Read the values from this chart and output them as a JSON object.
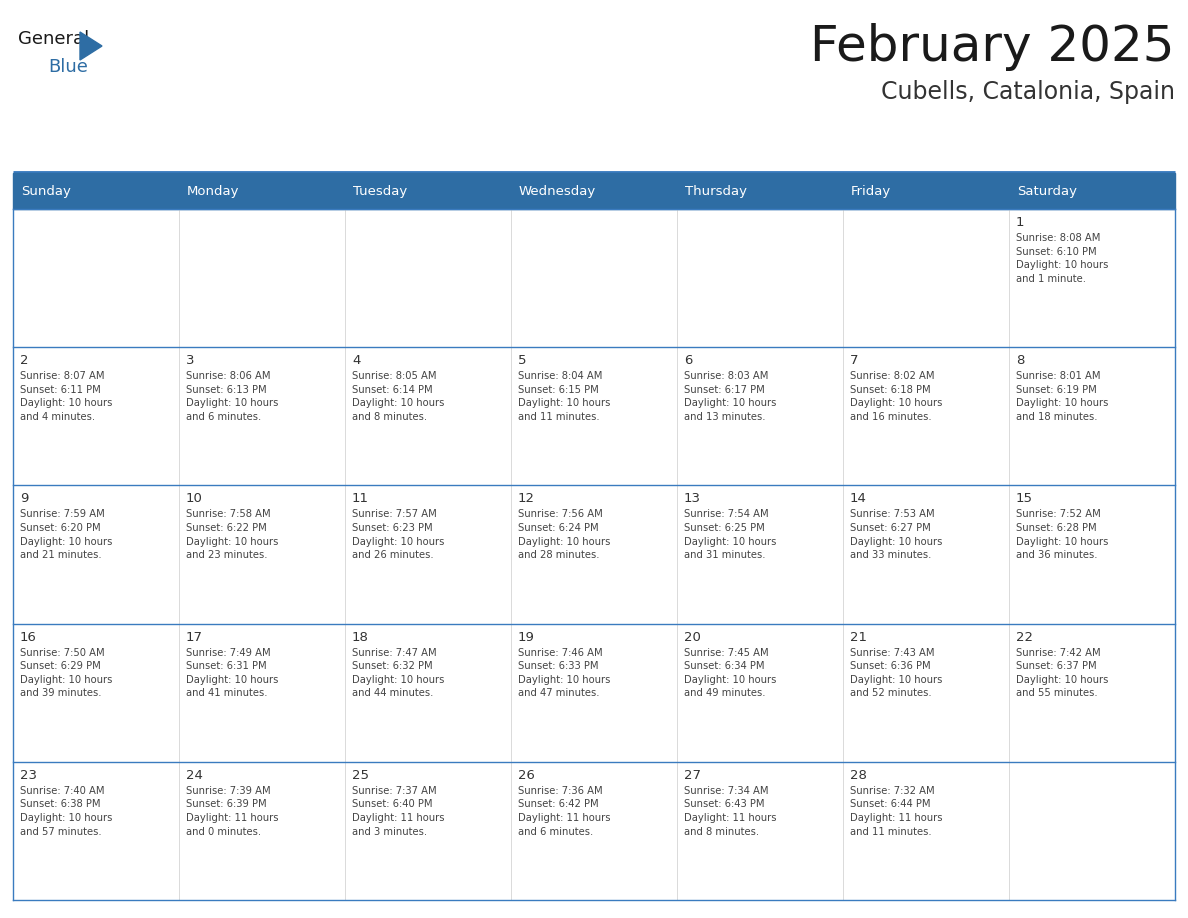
{
  "title": "February 2025",
  "subtitle": "Cubells, Catalonia, Spain",
  "header_bg": "#2e6da4",
  "header_text_color": "#ffffff",
  "title_color": "#1a1a1a",
  "subtitle_color": "#333333",
  "day_num_color": "#333333",
  "cell_text_color": "#444444",
  "grid_color": "#3a7bbf",
  "separator_color": "#3a7bbf",
  "cell_bg": "#ffffff",
  "first_row_bg": "#f2f2f2",
  "logo_general_color": "#1a1a1a",
  "logo_blue_color": "#2e6da4",
  "logo_triangle_color": "#2e6da4",
  "day_headers": [
    "Sunday",
    "Monday",
    "Tuesday",
    "Wednesday",
    "Thursday",
    "Friday",
    "Saturday"
  ],
  "weeks": [
    [
      {
        "day": null,
        "info": null
      },
      {
        "day": null,
        "info": null
      },
      {
        "day": null,
        "info": null
      },
      {
        "day": null,
        "info": null
      },
      {
        "day": null,
        "info": null
      },
      {
        "day": null,
        "info": null
      },
      {
        "day": 1,
        "info": "Sunrise: 8:08 AM\nSunset: 6:10 PM\nDaylight: 10 hours\nand 1 minute."
      }
    ],
    [
      {
        "day": 2,
        "info": "Sunrise: 8:07 AM\nSunset: 6:11 PM\nDaylight: 10 hours\nand 4 minutes."
      },
      {
        "day": 3,
        "info": "Sunrise: 8:06 AM\nSunset: 6:13 PM\nDaylight: 10 hours\nand 6 minutes."
      },
      {
        "day": 4,
        "info": "Sunrise: 8:05 AM\nSunset: 6:14 PM\nDaylight: 10 hours\nand 8 minutes."
      },
      {
        "day": 5,
        "info": "Sunrise: 8:04 AM\nSunset: 6:15 PM\nDaylight: 10 hours\nand 11 minutes."
      },
      {
        "day": 6,
        "info": "Sunrise: 8:03 AM\nSunset: 6:17 PM\nDaylight: 10 hours\nand 13 minutes."
      },
      {
        "day": 7,
        "info": "Sunrise: 8:02 AM\nSunset: 6:18 PM\nDaylight: 10 hours\nand 16 minutes."
      },
      {
        "day": 8,
        "info": "Sunrise: 8:01 AM\nSunset: 6:19 PM\nDaylight: 10 hours\nand 18 minutes."
      }
    ],
    [
      {
        "day": 9,
        "info": "Sunrise: 7:59 AM\nSunset: 6:20 PM\nDaylight: 10 hours\nand 21 minutes."
      },
      {
        "day": 10,
        "info": "Sunrise: 7:58 AM\nSunset: 6:22 PM\nDaylight: 10 hours\nand 23 minutes."
      },
      {
        "day": 11,
        "info": "Sunrise: 7:57 AM\nSunset: 6:23 PM\nDaylight: 10 hours\nand 26 minutes."
      },
      {
        "day": 12,
        "info": "Sunrise: 7:56 AM\nSunset: 6:24 PM\nDaylight: 10 hours\nand 28 minutes."
      },
      {
        "day": 13,
        "info": "Sunrise: 7:54 AM\nSunset: 6:25 PM\nDaylight: 10 hours\nand 31 minutes."
      },
      {
        "day": 14,
        "info": "Sunrise: 7:53 AM\nSunset: 6:27 PM\nDaylight: 10 hours\nand 33 minutes."
      },
      {
        "day": 15,
        "info": "Sunrise: 7:52 AM\nSunset: 6:28 PM\nDaylight: 10 hours\nand 36 minutes."
      }
    ],
    [
      {
        "day": 16,
        "info": "Sunrise: 7:50 AM\nSunset: 6:29 PM\nDaylight: 10 hours\nand 39 minutes."
      },
      {
        "day": 17,
        "info": "Sunrise: 7:49 AM\nSunset: 6:31 PM\nDaylight: 10 hours\nand 41 minutes."
      },
      {
        "day": 18,
        "info": "Sunrise: 7:47 AM\nSunset: 6:32 PM\nDaylight: 10 hours\nand 44 minutes."
      },
      {
        "day": 19,
        "info": "Sunrise: 7:46 AM\nSunset: 6:33 PM\nDaylight: 10 hours\nand 47 minutes."
      },
      {
        "day": 20,
        "info": "Sunrise: 7:45 AM\nSunset: 6:34 PM\nDaylight: 10 hours\nand 49 minutes."
      },
      {
        "day": 21,
        "info": "Sunrise: 7:43 AM\nSunset: 6:36 PM\nDaylight: 10 hours\nand 52 minutes."
      },
      {
        "day": 22,
        "info": "Sunrise: 7:42 AM\nSunset: 6:37 PM\nDaylight: 10 hours\nand 55 minutes."
      }
    ],
    [
      {
        "day": 23,
        "info": "Sunrise: 7:40 AM\nSunset: 6:38 PM\nDaylight: 10 hours\nand 57 minutes."
      },
      {
        "day": 24,
        "info": "Sunrise: 7:39 AM\nSunset: 6:39 PM\nDaylight: 11 hours\nand 0 minutes."
      },
      {
        "day": 25,
        "info": "Sunrise: 7:37 AM\nSunset: 6:40 PM\nDaylight: 11 hours\nand 3 minutes."
      },
      {
        "day": 26,
        "info": "Sunrise: 7:36 AM\nSunset: 6:42 PM\nDaylight: 11 hours\nand 6 minutes."
      },
      {
        "day": 27,
        "info": "Sunrise: 7:34 AM\nSunset: 6:43 PM\nDaylight: 11 hours\nand 8 minutes."
      },
      {
        "day": 28,
        "info": "Sunrise: 7:32 AM\nSunset: 6:44 PM\nDaylight: 11 hours\nand 11 minutes."
      },
      {
        "day": null,
        "info": null
      }
    ]
  ]
}
